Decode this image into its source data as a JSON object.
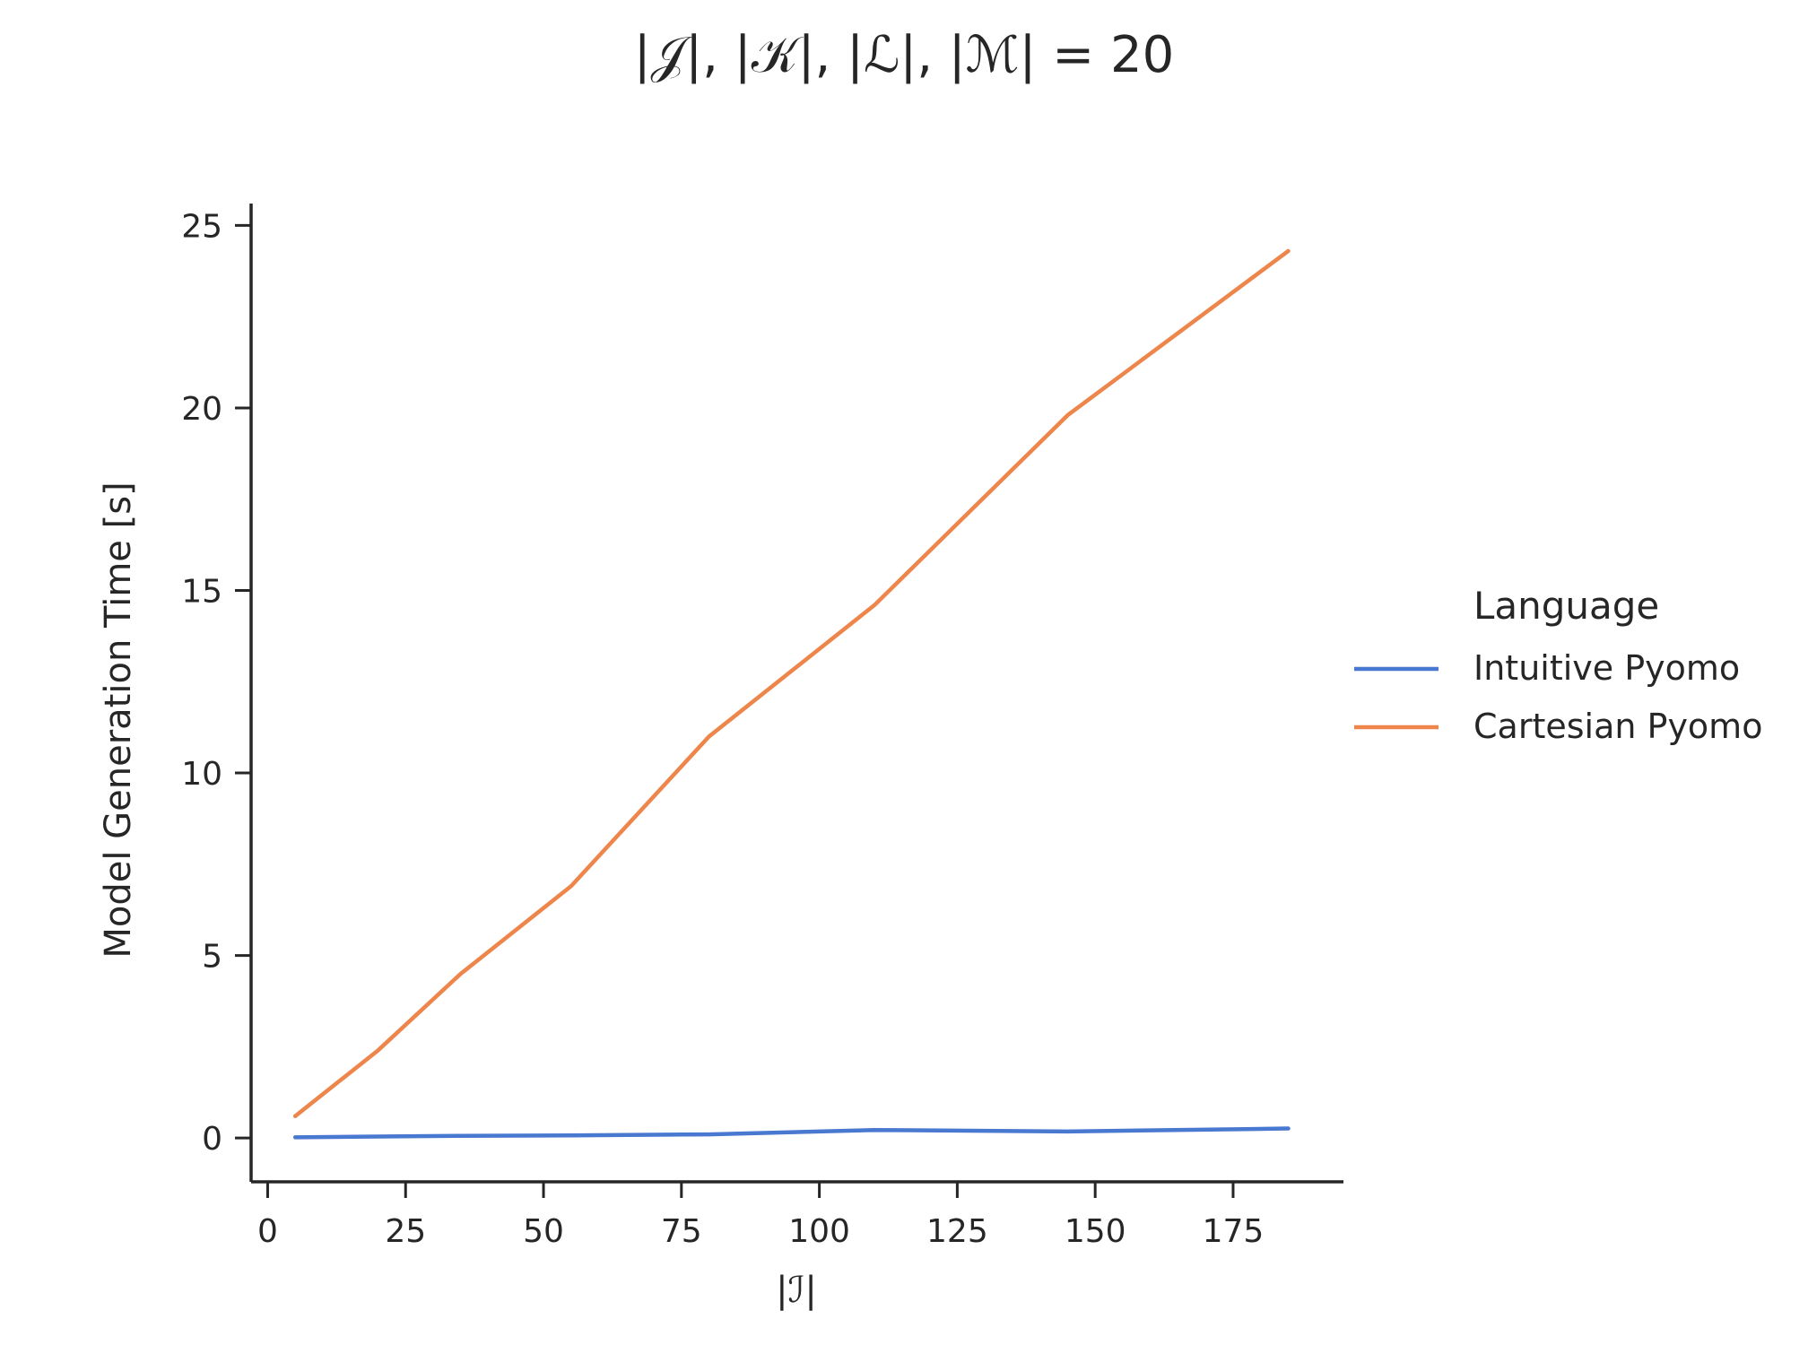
{
  "chart_data": {
    "type": "line",
    "title": "|𝒥|, |𝒦|, |ℒ|, |ℳ| = 20",
    "xlabel": "|ℐ|",
    "ylabel": "Model Generation Time [s]",
    "xlim": [
      -3,
      195
    ],
    "ylim": [
      -1.2,
      25.6
    ],
    "xticks": [
      0,
      25,
      50,
      75,
      100,
      125,
      150,
      175
    ],
    "yticks": [
      0,
      5,
      10,
      15,
      20,
      25
    ],
    "xtick_labels": [
      "0",
      "25",
      "50",
      "75",
      "100",
      "125",
      "150",
      "175"
    ],
    "ytick_labels": [
      "0",
      "5",
      "10",
      "15",
      "20",
      "25"
    ],
    "grid": false,
    "legend": {
      "title": "Language",
      "placement": "right-center-outside"
    },
    "series": [
      {
        "name": "Intuitive Pyomo",
        "color": "#4878d0",
        "x": [
          5,
          20,
          35,
          55,
          80,
          110,
          145,
          185
        ],
        "y": [
          0.02,
          0.04,
          0.06,
          0.07,
          0.1,
          0.22,
          0.18,
          0.26
        ]
      },
      {
        "name": "Cartesian Pyomo",
        "color": "#ee854a",
        "x": [
          5,
          20,
          35,
          55,
          80,
          110,
          145,
          185
        ],
        "y": [
          0.6,
          2.4,
          4.5,
          6.9,
          11.0,
          14.6,
          19.8,
          24.3
        ]
      }
    ]
  }
}
